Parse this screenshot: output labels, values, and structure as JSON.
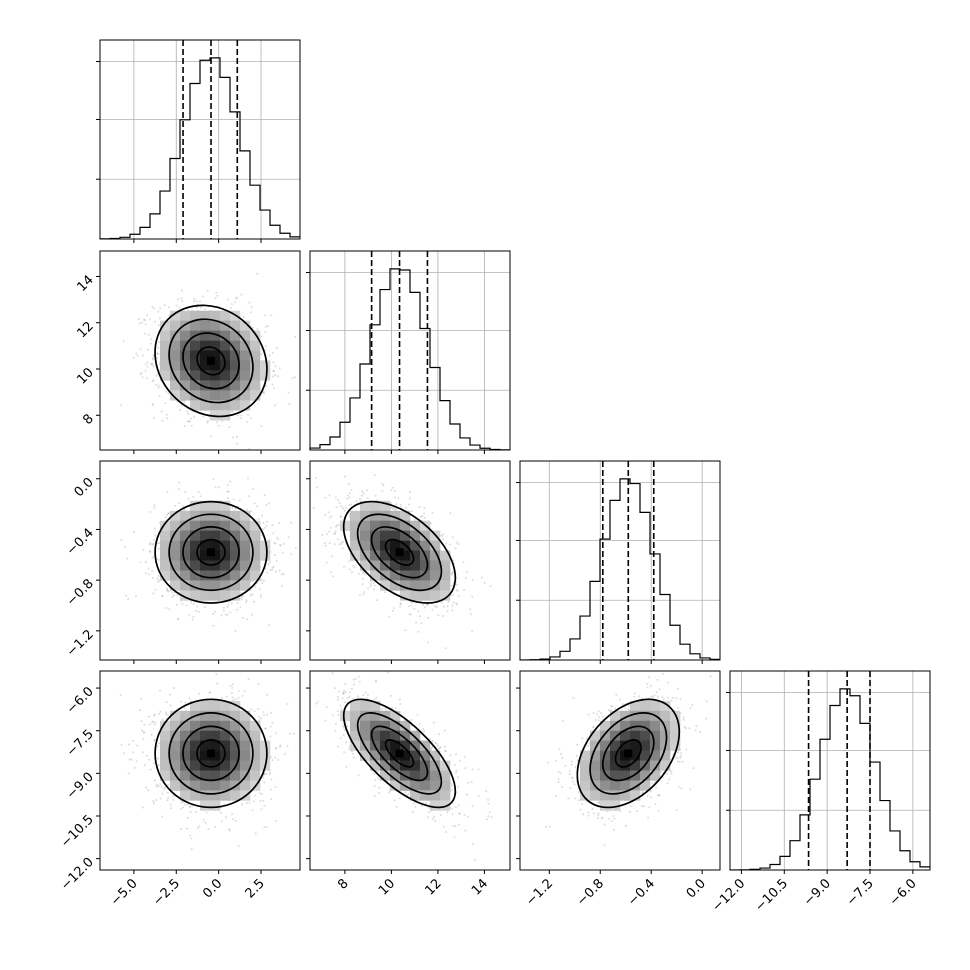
{
  "chart_data": {
    "type": "corner",
    "n_params": 4,
    "params": [
      {
        "name": "",
        "mean": -0.45,
        "sd": 1.65,
        "range": [
          -7.0,
          4.8
        ],
        "quantiles": [
          -2.1,
          -0.45,
          1.1
        ],
        "ticks": [
          -5.0,
          -2.5,
          0.0,
          2.5
        ],
        "tick_labels": [
          "−5.0",
          "−2.5",
          "0.0",
          "2.5"
        ]
      },
      {
        "name": "",
        "mean": 10.35,
        "sd": 1.2,
        "range": [
          6.5,
          15.1
        ],
        "quantiles": [
          9.15,
          10.35,
          11.55
        ],
        "ticks": [
          8,
          10,
          12,
          14
        ],
        "tick_labels": [
          "8",
          "10",
          "12",
          "14"
        ]
      },
      {
        "name": "",
        "mean": -0.58,
        "sd": 0.2,
        "range": [
          -1.43,
          0.14
        ],
        "quantiles": [
          -0.78,
          -0.58,
          -0.38
        ],
        "ticks": [
          -1.2,
          -0.8,
          -0.4,
          0.0
        ],
        "tick_labels": [
          "−1.2",
          "−0.8",
          "−0.4",
          "0.0"
        ]
      },
      {
        "name": "",
        "mean": -8.3,
        "sd": 0.95,
        "range": [
          -12.4,
          -5.4
        ],
        "quantiles": [
          -9.65,
          -8.3,
          -7.5
        ],
        "ticks": [
          -12.0,
          -10.5,
          -9.0,
          -7.5,
          -6.0
        ],
        "tick_labels": [
          "−12.0",
          "−10.5",
          "−9.0",
          "−7.5",
          "−6.0"
        ]
      }
    ],
    "correlations": {
      "1-0": -0.15,
      "2-0": 0.0,
      "2-1": -0.5,
      "3-0": 0.0,
      "3-1": -0.7,
      "3-2": 0.4
    },
    "hist_bins": 20,
    "contour_levels": [
      "0.5-sigma",
      "1-sigma",
      "1.5-sigma",
      "2-sigma"
    ],
    "grid": true
  }
}
